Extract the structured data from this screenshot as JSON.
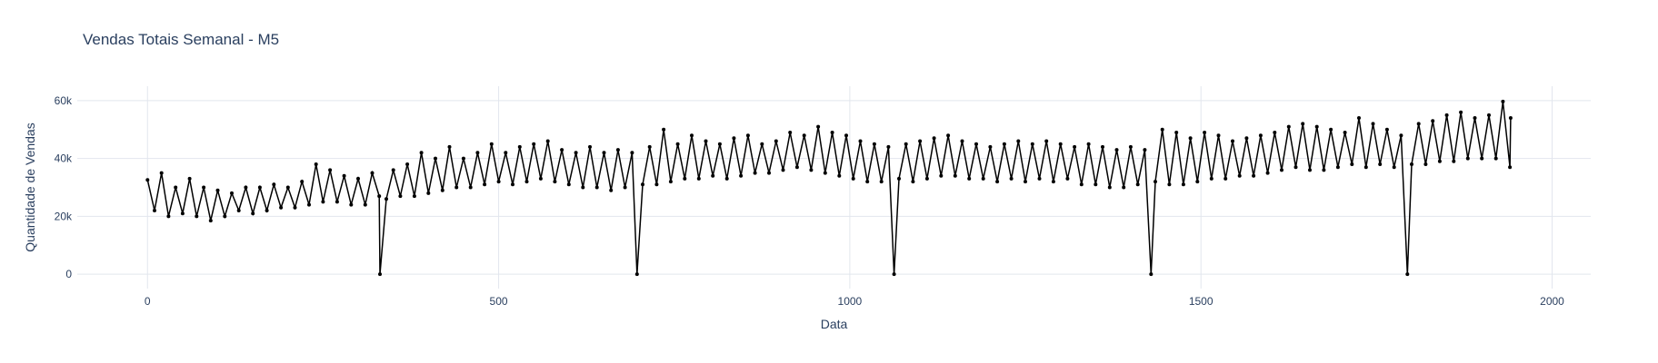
{
  "chart_data": {
    "type": "line",
    "title": "Vendas Totais Semanal - M5",
    "xlabel": "Data",
    "ylabel": "Quantidade de Vendas",
    "xlim": [
      -100,
      2055
    ],
    "ylim": [
      -5000,
      65000
    ],
    "x_ticks": [
      0,
      500,
      1000,
      1500,
      2000
    ],
    "x_tick_labels": [
      "0",
      "500",
      "1000",
      "1500",
      "2000"
    ],
    "y_ticks": [
      0,
      20000,
      40000,
      60000
    ],
    "y_tick_labels": [
      "0",
      "20k",
      "40k",
      "60k"
    ],
    "grid": true,
    "legend": "none",
    "series": [
      {
        "color": "#000000",
        "points": [
          [
            0,
            32600
          ],
          [
            10,
            22000
          ],
          [
            20,
            35000
          ],
          [
            30,
            20000
          ],
          [
            40,
            30000
          ],
          [
            50,
            21000
          ],
          [
            60,
            33000
          ],
          [
            70,
            20000
          ],
          [
            80,
            30000
          ],
          [
            90,
            18500
          ],
          [
            100,
            29000
          ],
          [
            110,
            20000
          ],
          [
            120,
            28000
          ],
          [
            130,
            22000
          ],
          [
            140,
            30000
          ],
          [
            150,
            21000
          ],
          [
            160,
            30000
          ],
          [
            170,
            22000
          ],
          [
            180,
            31000
          ],
          [
            190,
            23000
          ],
          [
            200,
            30000
          ],
          [
            210,
            23000
          ],
          [
            220,
            32000
          ],
          [
            230,
            24000
          ],
          [
            240,
            38000
          ],
          [
            250,
            25000
          ],
          [
            260,
            36000
          ],
          [
            270,
            25000
          ],
          [
            280,
            34000
          ],
          [
            290,
            24000
          ],
          [
            300,
            33000
          ],
          [
            310,
            24000
          ],
          [
            320,
            35000
          ],
          [
            330,
            27000
          ],
          [
            331,
            0
          ],
          [
            340,
            26000
          ],
          [
            350,
            36000
          ],
          [
            360,
            27000
          ],
          [
            370,
            38000
          ],
          [
            380,
            27000
          ],
          [
            390,
            42000
          ],
          [
            400,
            28000
          ],
          [
            410,
            40000
          ],
          [
            420,
            29000
          ],
          [
            430,
            44000
          ],
          [
            440,
            30000
          ],
          [
            450,
            40000
          ],
          [
            460,
            30000
          ],
          [
            470,
            42000
          ],
          [
            480,
            31000
          ],
          [
            490,
            45000
          ],
          [
            500,
            32000
          ],
          [
            510,
            42000
          ],
          [
            520,
            31000
          ],
          [
            530,
            44000
          ],
          [
            540,
            32000
          ],
          [
            550,
            45000
          ],
          [
            560,
            33000
          ],
          [
            570,
            46000
          ],
          [
            580,
            32000
          ],
          [
            590,
            43000
          ],
          [
            600,
            31000
          ],
          [
            610,
            42000
          ],
          [
            620,
            30000
          ],
          [
            630,
            44000
          ],
          [
            640,
            30000
          ],
          [
            650,
            42000
          ],
          [
            660,
            29000
          ],
          [
            670,
            43000
          ],
          [
            680,
            30000
          ],
          [
            690,
            42000
          ],
          [
            697,
            0
          ],
          [
            705,
            31000
          ],
          [
            715,
            44000
          ],
          [
            725,
            31000
          ],
          [
            735,
            50000
          ],
          [
            745,
            32000
          ],
          [
            755,
            45000
          ],
          [
            765,
            33000
          ],
          [
            775,
            48000
          ],
          [
            785,
            33000
          ],
          [
            795,
            46000
          ],
          [
            805,
            34000
          ],
          [
            815,
            45000
          ],
          [
            825,
            33000
          ],
          [
            835,
            47000
          ],
          [
            845,
            34000
          ],
          [
            855,
            48000
          ],
          [
            865,
            35000
          ],
          [
            875,
            45000
          ],
          [
            885,
            35000
          ],
          [
            895,
            46000
          ],
          [
            905,
            36000
          ],
          [
            915,
            49000
          ],
          [
            925,
            37000
          ],
          [
            935,
            48000
          ],
          [
            945,
            36000
          ],
          [
            955,
            51000
          ],
          [
            965,
            35000
          ],
          [
            975,
            49000
          ],
          [
            985,
            34000
          ],
          [
            995,
            48000
          ],
          [
            1005,
            33000
          ],
          [
            1015,
            46000
          ],
          [
            1025,
            32000
          ],
          [
            1035,
            45000
          ],
          [
            1045,
            32000
          ],
          [
            1055,
            44000
          ],
          [
            1063,
            0
          ],
          [
            1070,
            33000
          ],
          [
            1080,
            45000
          ],
          [
            1090,
            32000
          ],
          [
            1100,
            46000
          ],
          [
            1110,
            33000
          ],
          [
            1120,
            47000
          ],
          [
            1130,
            34000
          ],
          [
            1140,
            48000
          ],
          [
            1150,
            34000
          ],
          [
            1160,
            46000
          ],
          [
            1170,
            33000
          ],
          [
            1180,
            45000
          ],
          [
            1190,
            33000
          ],
          [
            1200,
            44000
          ],
          [
            1210,
            32000
          ],
          [
            1220,
            45000
          ],
          [
            1230,
            33000
          ],
          [
            1240,
            46000
          ],
          [
            1250,
            32000
          ],
          [
            1260,
            45000
          ],
          [
            1270,
            33000
          ],
          [
            1280,
            46000
          ],
          [
            1290,
            32000
          ],
          [
            1300,
            45000
          ],
          [
            1310,
            33000
          ],
          [
            1320,
            44000
          ],
          [
            1330,
            31000
          ],
          [
            1340,
            45000
          ],
          [
            1350,
            31000
          ],
          [
            1360,
            44000
          ],
          [
            1370,
            30000
          ],
          [
            1380,
            43000
          ],
          [
            1390,
            30000
          ],
          [
            1400,
            44000
          ],
          [
            1410,
            31000
          ],
          [
            1420,
            43000
          ],
          [
            1429,
            0
          ],
          [
            1435,
            32000
          ],
          [
            1445,
            50000
          ],
          [
            1455,
            31000
          ],
          [
            1465,
            49000
          ],
          [
            1475,
            31000
          ],
          [
            1485,
            47000
          ],
          [
            1495,
            32000
          ],
          [
            1505,
            49000
          ],
          [
            1515,
            33000
          ],
          [
            1525,
            48000
          ],
          [
            1535,
            33000
          ],
          [
            1545,
            46000
          ],
          [
            1555,
            34000
          ],
          [
            1565,
            47000
          ],
          [
            1575,
            34000
          ],
          [
            1585,
            48000
          ],
          [
            1595,
            35000
          ],
          [
            1605,
            49000
          ],
          [
            1615,
            36000
          ],
          [
            1625,
            51000
          ],
          [
            1635,
            37000
          ],
          [
            1645,
            52000
          ],
          [
            1655,
            36000
          ],
          [
            1665,
            51000
          ],
          [
            1675,
            36000
          ],
          [
            1685,
            50000
          ],
          [
            1695,
            37000
          ],
          [
            1705,
            49000
          ],
          [
            1715,
            38000
          ],
          [
            1725,
            54000
          ],
          [
            1735,
            37000
          ],
          [
            1745,
            52000
          ],
          [
            1755,
            38000
          ],
          [
            1765,
            50000
          ],
          [
            1775,
            37000
          ],
          [
            1785,
            48000
          ],
          [
            1794,
            0
          ],
          [
            1800,
            38000
          ],
          [
            1810,
            52000
          ],
          [
            1820,
            38000
          ],
          [
            1830,
            53000
          ],
          [
            1840,
            39000
          ],
          [
            1850,
            55000
          ],
          [
            1860,
            39000
          ],
          [
            1870,
            56000
          ],
          [
            1880,
            40000
          ],
          [
            1890,
            54000
          ],
          [
            1900,
            40000
          ],
          [
            1910,
            55000
          ],
          [
            1920,
            40000
          ],
          [
            1930,
            59700
          ],
          [
            1940,
            37000
          ],
          [
            1941,
            54000
          ]
        ]
      }
    ]
  }
}
